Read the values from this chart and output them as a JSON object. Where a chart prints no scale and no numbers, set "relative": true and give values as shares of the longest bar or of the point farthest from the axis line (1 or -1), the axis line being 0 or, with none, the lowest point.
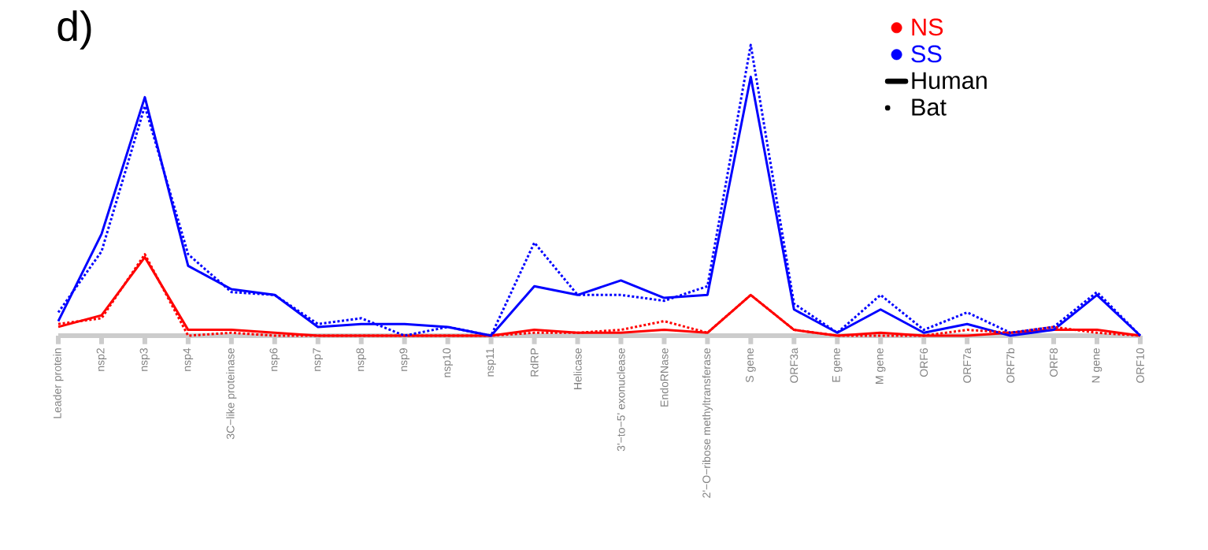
{
  "chart_data": {
    "type": "line",
    "title": "d)",
    "relative": true,
    "legend": "top right",
    "marker": "none",
    "categories": [
      "Leader protein",
      "nsp2",
      "nsp3",
      "nsp4",
      "3C−like proteinase",
      "nsp6",
      "nsp7",
      "nsp8",
      "nsp9",
      "nsp10",
      "nsp11",
      "RdRP",
      "Helicase",
      "3'−to−5' exonuclease",
      "EndoRNase",
      "2'−O−ribose methyltransferase",
      "S gene",
      "ORF3a",
      "E gene",
      "M gene",
      "ORF6",
      "ORF7a",
      "ORF7b",
      "ORF8",
      "N gene",
      "ORF10"
    ],
    "series": [
      {
        "name": "NS",
        "color": "#ff0000",
        "line_style": "solid",
        "values": [
          0.03,
          0.07,
          0.27,
          0.02,
          0.02,
          0.01,
          0,
          0,
          0,
          0,
          0,
          0.02,
          0.01,
          0.01,
          0.02,
          0.01,
          0.14,
          0.02,
          0,
          0.01,
          0,
          0,
          0.01,
          0.02,
          0.02,
          0
        ]
      },
      {
        "name": "SS",
        "color": "#0000ff",
        "line_style": "solid",
        "values": [
          0.05,
          0.35,
          0.82,
          0.24,
          0.16,
          0.14,
          0.03,
          0.04,
          0.04,
          0.03,
          0,
          0.17,
          0.14,
          0.19,
          0.13,
          0.14,
          0.89,
          0.09,
          0.01,
          0.09,
          0.01,
          0.04,
          0,
          0.02,
          0.14,
          0
        ]
      },
      {
        "color": "#ff0000",
        "line_style": "dotted",
        "values": [
          0.04,
          0.06,
          0.28,
          0,
          0.01,
          0,
          0,
          0,
          0,
          0,
          0,
          0.01,
          0.01,
          0.02,
          0.05,
          0.01,
          0.14,
          0.02,
          0,
          0,
          0,
          0.02,
          0.01,
          0.03,
          0.01,
          0
        ]
      },
      {
        "color": "#0000ff",
        "line_style": "dotted",
        "values": [
          0.08,
          0.29,
          0.79,
          0.28,
          0.15,
          0.14,
          0.04,
          0.06,
          0,
          0.03,
          0,
          0.32,
          0.14,
          0.14,
          0.12,
          0.17,
          1,
          0.11,
          0.01,
          0.14,
          0.02,
          0.08,
          0.01,
          0.03,
          0.15,
          0
        ]
      }
    ],
    "annotations": [
      "Human",
      "Bat"
    ]
  }
}
